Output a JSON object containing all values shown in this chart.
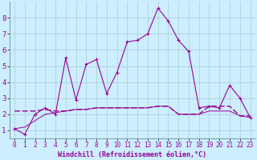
{
  "x": [
    0,
    1,
    2,
    3,
    4,
    5,
    6,
    7,
    8,
    9,
    10,
    11,
    12,
    13,
    14,
    15,
    16,
    17,
    18,
    19,
    20,
    21,
    22,
    23
  ],
  "line1": [
    1.1,
    0.75,
    2.0,
    2.4,
    2.0,
    5.5,
    2.9,
    5.1,
    5.4,
    3.3,
    4.6,
    6.5,
    6.6,
    7.0,
    8.6,
    7.8,
    6.6,
    5.9,
    2.4,
    2.5,
    2.4,
    3.8,
    3.0,
    1.8
  ],
  "line2": [
    2.2,
    2.2,
    2.2,
    2.3,
    2.2,
    2.2,
    2.3,
    2.3,
    2.4,
    2.4,
    2.4,
    2.4,
    2.4,
    2.4,
    2.5,
    2.5,
    2.0,
    2.0,
    2.0,
    2.5,
    2.5,
    2.5,
    1.9,
    1.9
  ],
  "line3": [
    1.1,
    1.2,
    1.6,
    2.0,
    2.1,
    2.2,
    2.3,
    2.3,
    2.4,
    2.4,
    2.4,
    2.4,
    2.4,
    2.4,
    2.5,
    2.5,
    2.0,
    2.0,
    2.0,
    2.2,
    2.2,
    2.2,
    1.9,
    1.8
  ],
  "line_color": "#990099",
  "background_color": "#cceeff",
  "grid_color": "#aacccc",
  "xlabel": "Windchill (Refroidissement éolien,°C)",
  "ylim": [
    0.5,
    9.0
  ],
  "xlim": [
    -0.5,
    23.5
  ],
  "yticks": [
    1,
    2,
    3,
    4,
    5,
    6,
    7,
    8
  ],
  "xticks": [
    0,
    1,
    2,
    3,
    4,
    5,
    6,
    7,
    8,
    9,
    10,
    11,
    12,
    13,
    14,
    15,
    16,
    17,
    18,
    19,
    20,
    21,
    22,
    23
  ]
}
